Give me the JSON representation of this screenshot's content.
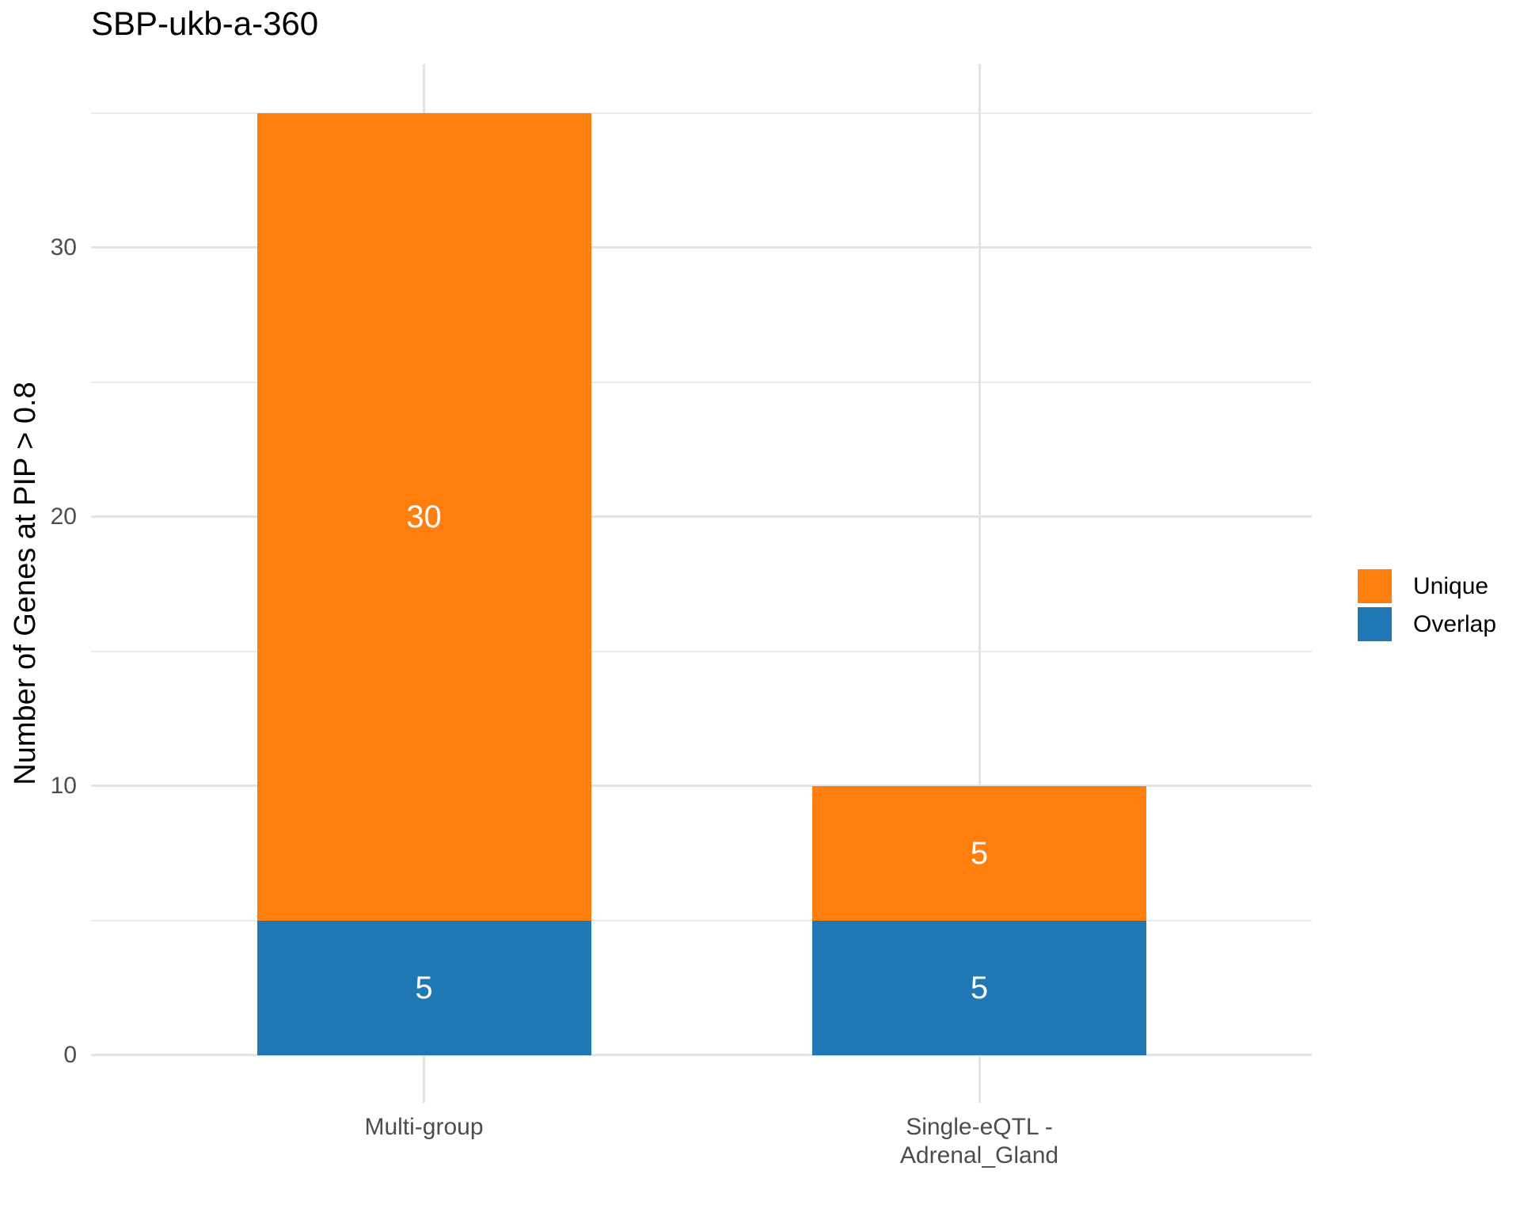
{
  "chart_data": {
    "type": "bar",
    "stacked": true,
    "title": "SBP-ukb-a-360",
    "xlabel": "",
    "ylabel": "Number of Genes at PIP > 0.8",
    "categories": [
      "Multi-group",
      "Single-eQTL -\nAdrenal_Gland"
    ],
    "series": [
      {
        "name": "Overlap",
        "color": "#1f77b4",
        "values": [
          5,
          5
        ]
      },
      {
        "name": "Unique",
        "color": "#ff7f0e",
        "values": [
          30,
          5
        ]
      }
    ],
    "bar_value_labels": [
      {
        "category": "Multi-group",
        "Overlap": 5,
        "Unique": 30
      },
      {
        "category": "Single-eQTL - Adrenal_Gland",
        "Overlap": 5,
        "Unique": 5
      }
    ],
    "bar_label_color": "#ffffff",
    "ylim": [
      0,
      35
    ],
    "yticks_major": [
      0,
      10,
      20,
      30
    ],
    "yticks_minor": [
      5,
      15,
      25,
      35
    ],
    "grid": true,
    "legend": {
      "position": "right",
      "entries": [
        {
          "label": "Unique",
          "color": "#ff7f0e"
        },
        {
          "label": "Overlap",
          "color": "#1f77b4"
        }
      ]
    }
  }
}
